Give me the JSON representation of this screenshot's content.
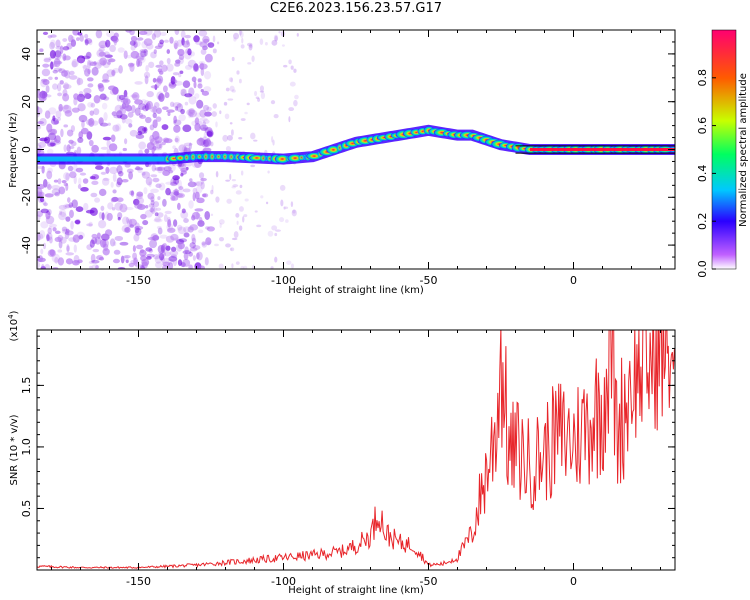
{
  "title": "C2E6.2023.156.23.57.G17",
  "colors": {
    "frame": "#000000",
    "snr_line": "#e8252a",
    "background": "#ffffff"
  },
  "top_xlabel": "Height of straight line (km)",
  "top_ylabel": "Frequency (Hz)",
  "colorbar_label": "Normalized spectral amplitude",
  "bottom_xlabel": "Height of straight line (km)",
  "bottom_ylabel": "SNR (10 * v/v)",
  "bottom_scale": "(x10",
  "bottom_scale_exp": "4",
  "bottom_scale_close": ")",
  "chart_data": [
    {
      "type": "heatmap",
      "title": "C2E6.2023.156.23.57.G17",
      "xlabel": "Height of straight line (km)",
      "ylabel": "Frequency (Hz)",
      "xlim": [
        -185,
        35
      ],
      "ylim": [
        -50,
        50
      ],
      "xticks": [
        -150,
        -100,
        -50,
        0
      ],
      "yticks": [
        40,
        20,
        0,
        -20,
        -40
      ],
      "colorbar": {
        "label": "Normalized spectral amplitude",
        "range": [
          0,
          1
        ],
        "ticks": [
          0.0,
          0.2,
          0.4,
          0.6,
          0.8
        ],
        "colormap": "rainbow (violet to red)"
      },
      "ridge": {
        "x": [
          -185,
          -170,
          -150,
          -140,
          -130,
          -120,
          -110,
          -100,
          -90,
          -85,
          -80,
          -75,
          -70,
          -65,
          -60,
          -55,
          -50,
          -45,
          -40,
          -35,
          -30,
          -25,
          -20,
          -15,
          -10,
          0,
          10,
          20,
          30,
          35
        ],
        "frequency": [
          -4,
          -4,
          -4,
          -4,
          -3,
          -3,
          -3.5,
          -4,
          -3,
          -1,
          1,
          3,
          4,
          5,
          6,
          7,
          8,
          7,
          6,
          6,
          4,
          2,
          1,
          0,
          0,
          0,
          0,
          0,
          0,
          0
        ]
      }
    },
    {
      "type": "line",
      "xlabel": "Height of straight line (km)",
      "ylabel": "SNR (10 * v/v)",
      "y_scale_note": "(x10^4)",
      "xlim": [
        -185,
        35
      ],
      "ylim": [
        0,
        1.95
      ],
      "xticks": [
        -150,
        -100,
        -50,
        0
      ],
      "yticks": [
        0.5,
        1.0,
        1.5
      ],
      "series": [
        {
          "x": [
            -185,
            -170,
            -150,
            -130,
            -120,
            -110,
            -100,
            -90,
            -80,
            -75,
            -70,
            -67,
            -65,
            -60,
            -55,
            -50,
            -45,
            -40,
            -35,
            -32,
            -30,
            -27,
            -25,
            -22,
            -20,
            -15,
            -10,
            -5,
            0,
            5,
            10,
            13,
            15,
            20,
            25,
            30,
            35
          ],
          "values": [
            0.03,
            0.02,
            0.02,
            0.04,
            0.06,
            0.08,
            0.1,
            0.12,
            0.15,
            0.2,
            0.28,
            0.5,
            0.3,
            0.22,
            0.2,
            0.04,
            0.05,
            0.1,
            0.3,
            0.6,
            0.8,
            1.1,
            1.75,
            0.9,
            1.0,
            0.85,
            0.95,
            1.1,
            1.05,
            1.2,
            1.35,
            1.9,
            1.1,
            1.55,
            1.65,
            1.75,
            1.8
          ]
        }
      ]
    }
  ]
}
